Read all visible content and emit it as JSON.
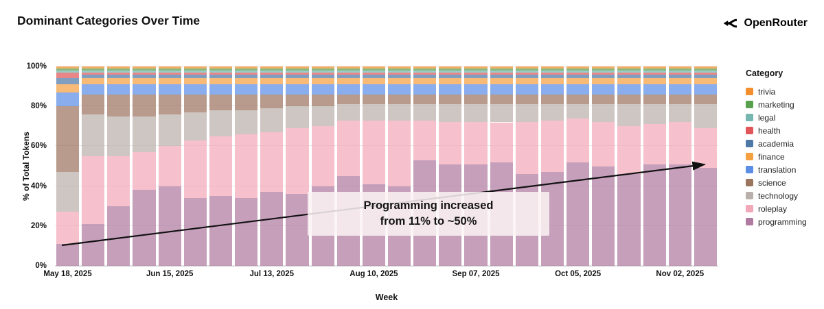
{
  "header": {
    "title": "Dominant Categories Over Time",
    "brand": "OpenRouter"
  },
  "chart_data": {
    "type": "bar",
    "variant": "stacked-100-percent",
    "title": "Dominant Categories Over Time",
    "xlabel": "Week",
    "ylabel": "% of Total Tokens",
    "ylim": [
      0,
      100
    ],
    "grid": "horizontal",
    "legend_position": "right",
    "legend_title": "Category",
    "bar_opacity": 0.72,
    "ytick_values": [
      0,
      20,
      40,
      60,
      80,
      100
    ],
    "ytick_labels": [
      "0%",
      "20%",
      "40%",
      "60%",
      "80%",
      "100%"
    ],
    "xticks": [
      {
        "index": 0,
        "label": "May 18, 2025"
      },
      {
        "index": 4,
        "label": "Jun 15, 2025"
      },
      {
        "index": 8,
        "label": "Jul 13, 2025"
      },
      {
        "index": 12,
        "label": "Aug 10, 2025"
      },
      {
        "index": 16,
        "label": "Sep 07, 2025"
      },
      {
        "index": 20,
        "label": "Oct 05, 2025"
      },
      {
        "index": 24,
        "label": "Nov 02, 2025"
      }
    ],
    "legend": [
      {
        "name": "trivia",
        "color": "#f28e2b"
      },
      {
        "name": "marketing",
        "color": "#59a14f"
      },
      {
        "name": "legal",
        "color": "#76b7b2"
      },
      {
        "name": "health",
        "color": "#e15759"
      },
      {
        "name": "academia",
        "color": "#4e79a7"
      },
      {
        "name": "finance",
        "color": "#f5a142"
      },
      {
        "name": "translation",
        "color": "#5c8ee6"
      },
      {
        "name": "science",
        "color": "#9c755f"
      },
      {
        "name": "technology",
        "color": "#bab0ab"
      },
      {
        "name": "roleplay",
        "color": "#f2a8b8"
      },
      {
        "name": "programming",
        "color": "#b07aa1"
      }
    ],
    "series": [
      {
        "name": "programming",
        "color": "#b07aa1",
        "values": [
          11,
          21,
          30,
          38,
          40,
          34,
          35,
          34,
          37,
          36,
          40,
          45,
          41,
          40,
          53,
          51,
          51,
          52,
          46,
          47,
          52,
          50,
          46,
          51,
          51,
          49
        ]
      },
      {
        "name": "roleplay",
        "color": "#f2a8b8",
        "values": [
          16,
          34,
          25,
          19,
          20,
          29,
          30,
          32,
          30,
          33,
          30,
          28,
          32,
          33,
          20,
          21,
          21,
          20,
          26,
          26,
          22,
          22,
          24,
          20,
          21,
          20
        ]
      },
      {
        "name": "technology",
        "color": "#bab0ab",
        "values": [
          20,
          21,
          20,
          18,
          16,
          14,
          13,
          12,
          12,
          11,
          10,
          8,
          8,
          8,
          8,
          9,
          9,
          9,
          9,
          8,
          7,
          9,
          11,
          10,
          9,
          12
        ]
      },
      {
        "name": "science",
        "color": "#9c755f",
        "values": [
          33,
          10,
          11,
          11,
          10,
          9,
          8,
          8,
          7,
          6,
          6,
          5,
          5,
          5,
          5,
          5,
          5,
          5,
          5,
          5,
          5,
          5,
          5,
          5,
          5,
          5
        ]
      },
      {
        "name": "translation",
        "color": "#5c8ee6",
        "values": [
          7,
          5,
          5,
          5,
          5,
          5,
          5,
          5,
          5,
          5,
          5,
          5,
          5,
          5,
          5,
          5,
          5,
          5,
          5,
          5,
          5,
          5,
          5,
          5,
          5,
          5
        ]
      },
      {
        "name": "finance",
        "color": "#f5a142",
        "values": [
          4,
          3,
          3,
          3,
          3,
          3,
          3,
          3,
          3,
          3,
          3,
          3,
          3,
          3,
          3,
          3,
          3,
          3,
          3,
          3,
          3,
          3,
          3,
          3,
          3,
          3
        ]
      },
      {
        "name": "academia",
        "color": "#4e79a7",
        "values": [
          3,
          2,
          2,
          2,
          2,
          2,
          2,
          2,
          2,
          2,
          2,
          2,
          2,
          2,
          2,
          2,
          2,
          2,
          2,
          2,
          2,
          2,
          2,
          2,
          2,
          2
        ]
      },
      {
        "name": "health",
        "color": "#e15759",
        "values": [
          3,
          1,
          1,
          1,
          1,
          1,
          1,
          1,
          1,
          1,
          1,
          1,
          1,
          1,
          1,
          1,
          1,
          1,
          1,
          1,
          1,
          1,
          1,
          1,
          1,
          1
        ]
      },
      {
        "name": "legal",
        "color": "#76b7b2",
        "values": [
          1,
          1,
          1,
          1,
          1,
          1,
          1,
          1,
          1,
          1,
          1,
          1,
          1,
          1,
          1,
          1,
          1,
          1,
          1,
          1,
          1,
          1,
          1,
          1,
          1,
          1
        ]
      },
      {
        "name": "marketing",
        "color": "#59a14f",
        "values": [
          1,
          1,
          1,
          1,
          1,
          1,
          1,
          1,
          1,
          1,
          1,
          1,
          1,
          1,
          1,
          1,
          1,
          1,
          1,
          1,
          1,
          1,
          1,
          1,
          1,
          1
        ]
      },
      {
        "name": "trivia",
        "color": "#f28e2b",
        "values": [
          1,
          1,
          1,
          1,
          1,
          1,
          1,
          1,
          1,
          1,
          1,
          1,
          1,
          1,
          1,
          1,
          1,
          1,
          1,
          1,
          1,
          1,
          1,
          1,
          1,
          1
        ]
      }
    ],
    "annotation": {
      "line1": "Programming increased",
      "line2": "from 11% to ~50%"
    }
  }
}
